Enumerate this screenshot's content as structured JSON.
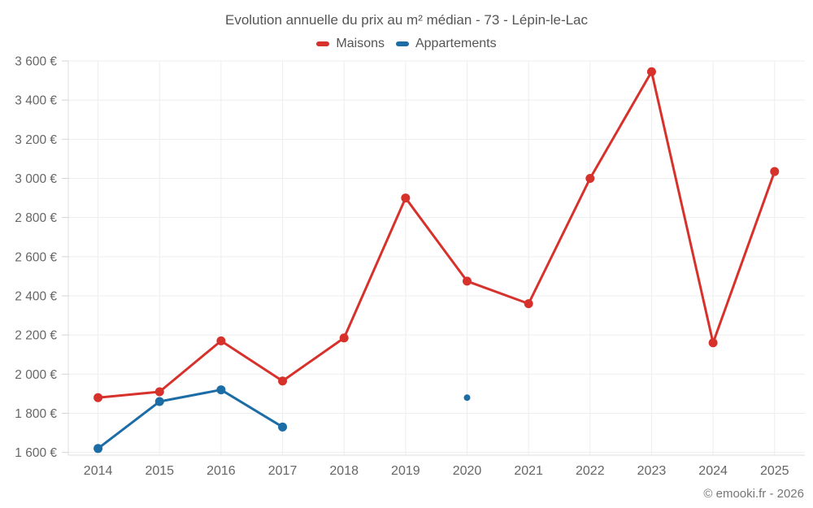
{
  "title": "Evolution annuelle du prix au m² médian - 73 - Lépin-le-Lac",
  "watermark": "© emooki.fr - 2026",
  "legend": [
    {
      "label": "Maisons",
      "color": "#d7312c"
    },
    {
      "label": "Appartements",
      "color": "#1c6ca6"
    }
  ],
  "colors": {
    "maisons": "#d7312c",
    "appartements": "#1c6ca6",
    "grid": "#ededed",
    "axis": "#dddddd",
    "tick": "#d4d4d4",
    "axis_text": "#666666",
    "title_text": "#555555"
  },
  "chart_data": {
    "type": "line",
    "title": "Evolution annuelle du prix au m² médian - 73 - Lépin-le-Lac",
    "x": [
      2014,
      2015,
      2016,
      2017,
      2018,
      2019,
      2020,
      2021,
      2022,
      2023,
      2024,
      2025
    ],
    "series": [
      {
        "name": "Maisons",
        "color": "#d7312c",
        "values": [
          1880,
          1910,
          2170,
          1965,
          2185,
          2900,
          2475,
          2360,
          3000,
          3545,
          2160,
          3035
        ]
      },
      {
        "name": "Appartements",
        "color": "#1c6ca6",
        "values": [
          1620,
          1860,
          1920,
          1730,
          null,
          null,
          1880,
          null,
          null,
          null,
          null,
          null
        ]
      }
    ],
    "yticks": [
      1600,
      1800,
      2000,
      2200,
      2400,
      2600,
      2800,
      3000,
      3200,
      3400,
      3600
    ],
    "ytick_labels": [
      "1 600 €",
      "1 800 €",
      "2 000 €",
      "2 200 €",
      "2 400 €",
      "2 600 €",
      "2 800 €",
      "3 000 €",
      "3 200 €",
      "3 400 €",
      "3 600 €"
    ],
    "ylim": [
      1586,
      3600
    ],
    "xlabel": "",
    "ylabel": "",
    "grid": true,
    "legend_position": "top"
  }
}
